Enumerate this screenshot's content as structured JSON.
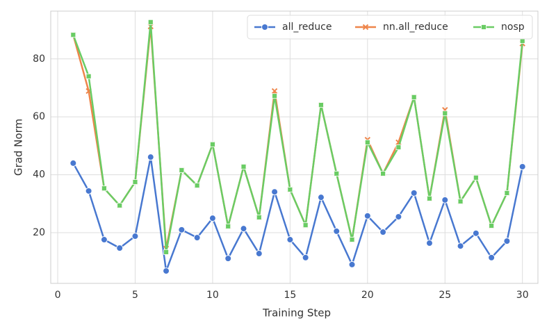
{
  "chart_data": {
    "type": "line",
    "x_label": "Training Step",
    "y_label": "Grad Norm",
    "x": [
      1,
      2,
      3,
      4,
      5,
      6,
      7,
      8,
      9,
      10,
      11,
      12,
      13,
      14,
      15,
      16,
      17,
      18,
      19,
      20,
      21,
      22,
      23,
      24,
      25,
      26,
      27,
      28,
      29,
      30
    ],
    "series": [
      {
        "name": "all_reduce",
        "color": "#4878d0",
        "marker": "circle",
        "values": [
          44.0,
          34.4,
          17.6,
          14.7,
          18.8,
          46.1,
          6.8,
          21.0,
          18.3,
          25.0,
          11.1,
          21.4,
          12.8,
          34.1,
          17.6,
          11.4,
          32.2,
          20.5,
          9.0,
          25.8,
          20.2,
          25.5,
          33.7,
          16.4,
          31.3,
          15.4,
          19.8,
          11.4,
          17.1,
          42.8
        ]
      },
      {
        "name": "nn.all_reduce",
        "color": "#ee854a",
        "marker": "x",
        "values": [
          88.3,
          68.9,
          35.3,
          29.4,
          37.5,
          91.2,
          14.5,
          41.6,
          36.3,
          50.5,
          22.2,
          42.8,
          25.3,
          68.9,
          34.9,
          22.6,
          64.1,
          40.4,
          17.6,
          52.1,
          40.4,
          51.2,
          66.8,
          31.8,
          62.4,
          30.8,
          39.0,
          22.4,
          33.7,
          85.3
        ]
      },
      {
        "name": "nosp",
        "color": "#6acc64",
        "marker": "square",
        "values": [
          88.3,
          74.0,
          35.3,
          29.4,
          37.5,
          92.7,
          13.3,
          41.6,
          36.3,
          50.5,
          22.2,
          42.8,
          25.3,
          67.2,
          34.9,
          22.6,
          64.1,
          40.4,
          17.6,
          51.2,
          40.4,
          49.5,
          66.8,
          31.8,
          61.2,
          30.8,
          39.0,
          22.4,
          33.7,
          86.2
        ]
      }
    ],
    "xlim": [
      -0.45,
      31.0
    ],
    "ylim": [
      2.5,
      96.5
    ],
    "xticks": [
      0,
      5,
      10,
      15,
      20,
      25,
      30
    ],
    "yticks": [
      20,
      40,
      60,
      80
    ],
    "grid": true,
    "legend": "upper-right"
  }
}
